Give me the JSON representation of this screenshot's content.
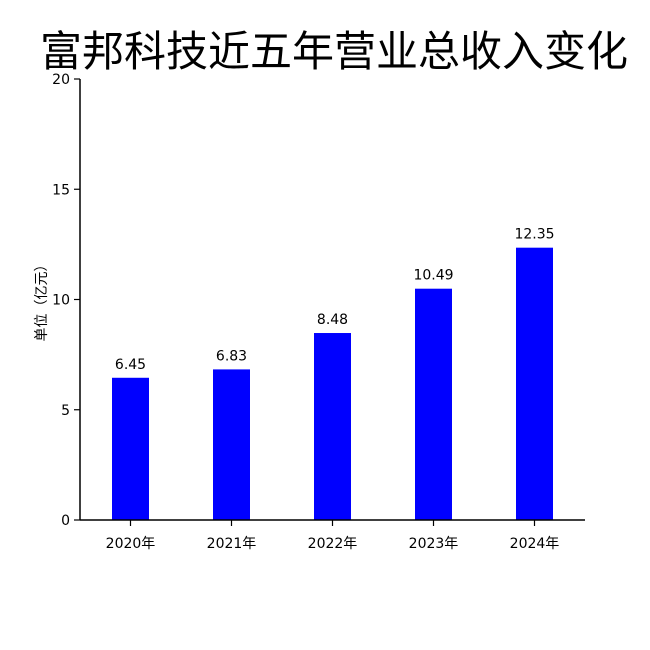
{
  "chart_data": {
    "type": "bar",
    "title": "富邦科技近五年营业总收入变化",
    "xlabel": "",
    "ylabel": "单位（亿元）",
    "categories": [
      "2020年",
      "2021年",
      "2022年",
      "2023年",
      "2024年"
    ],
    "values": [
      6.45,
      6.83,
      8.48,
      10.49,
      12.35
    ],
    "value_labels": [
      "6.45",
      "6.83",
      "8.48",
      "10.49",
      "12.35"
    ],
    "ylim": [
      0,
      20
    ],
    "yticks": [
      0,
      5,
      10,
      15,
      20
    ],
    "ytick_labels": [
      "0",
      "5",
      "10",
      "15",
      "20"
    ],
    "bar_color": "#0000ff",
    "grid": false,
    "legend": "none"
  }
}
